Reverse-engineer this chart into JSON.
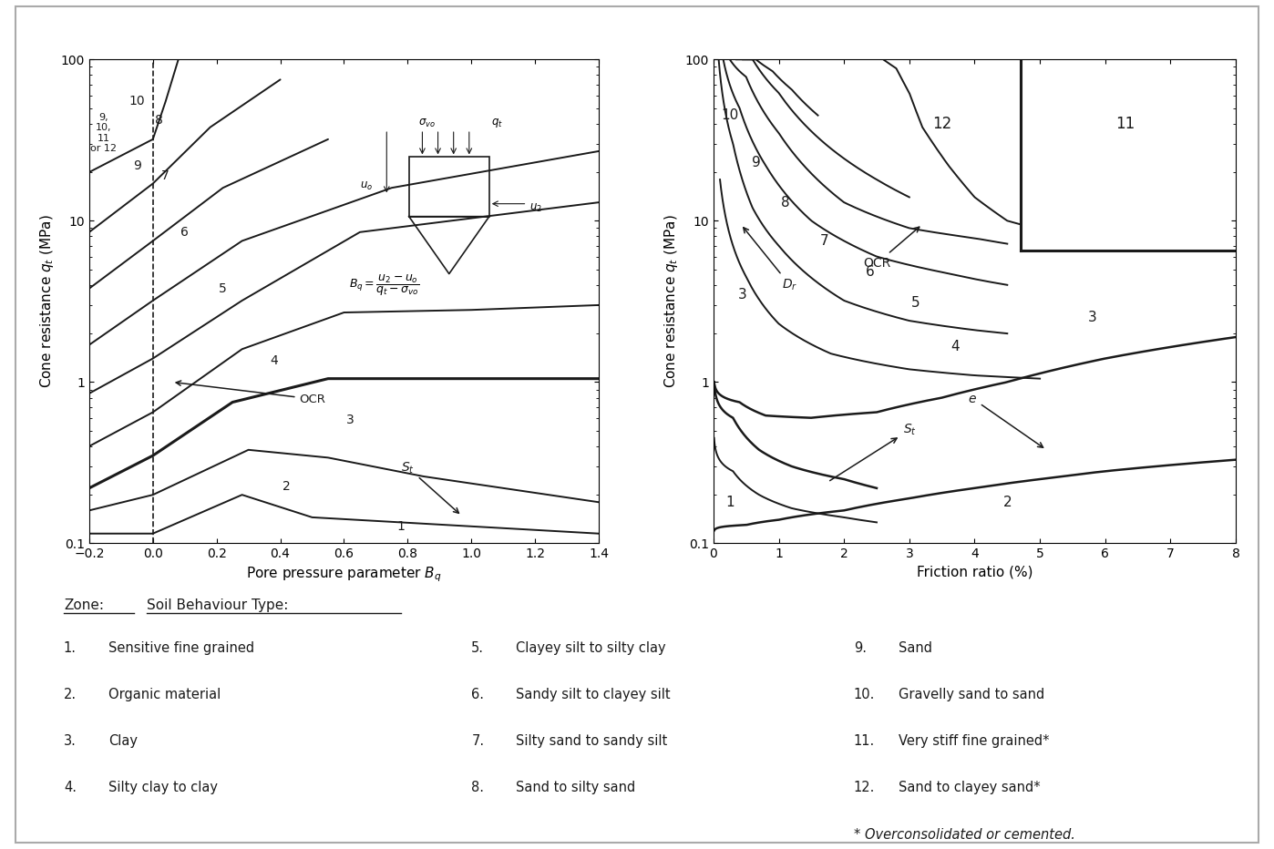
{
  "fig_width": 13.98,
  "fig_height": 9.32,
  "bg_color": "#ffffff",
  "line_color": "#1a1a1a",
  "legend": {
    "items_col1": [
      [
        "1.",
        "Sensitive fine grained"
      ],
      [
        "2.",
        "Organic material"
      ],
      [
        "3.",
        "Clay"
      ],
      [
        "4.",
        "Silty clay to clay"
      ]
    ],
    "items_col2": [
      [
        "5.",
        "Clayey silt to silty clay"
      ],
      [
        "6.",
        "Sandy silt to clayey silt"
      ],
      [
        "7.",
        "Silty sand to sandy silt"
      ],
      [
        "8.",
        "Sand to silty sand"
      ]
    ],
    "items_col3": [
      [
        "9.",
        "Sand"
      ],
      [
        "10.",
        "Gravelly sand to sand"
      ],
      [
        "11.",
        "Very stiff fine grained*"
      ],
      [
        "12.",
        "Sand to clayey sand*"
      ]
    ],
    "footnote": "* Overconsolidated or cemented."
  }
}
